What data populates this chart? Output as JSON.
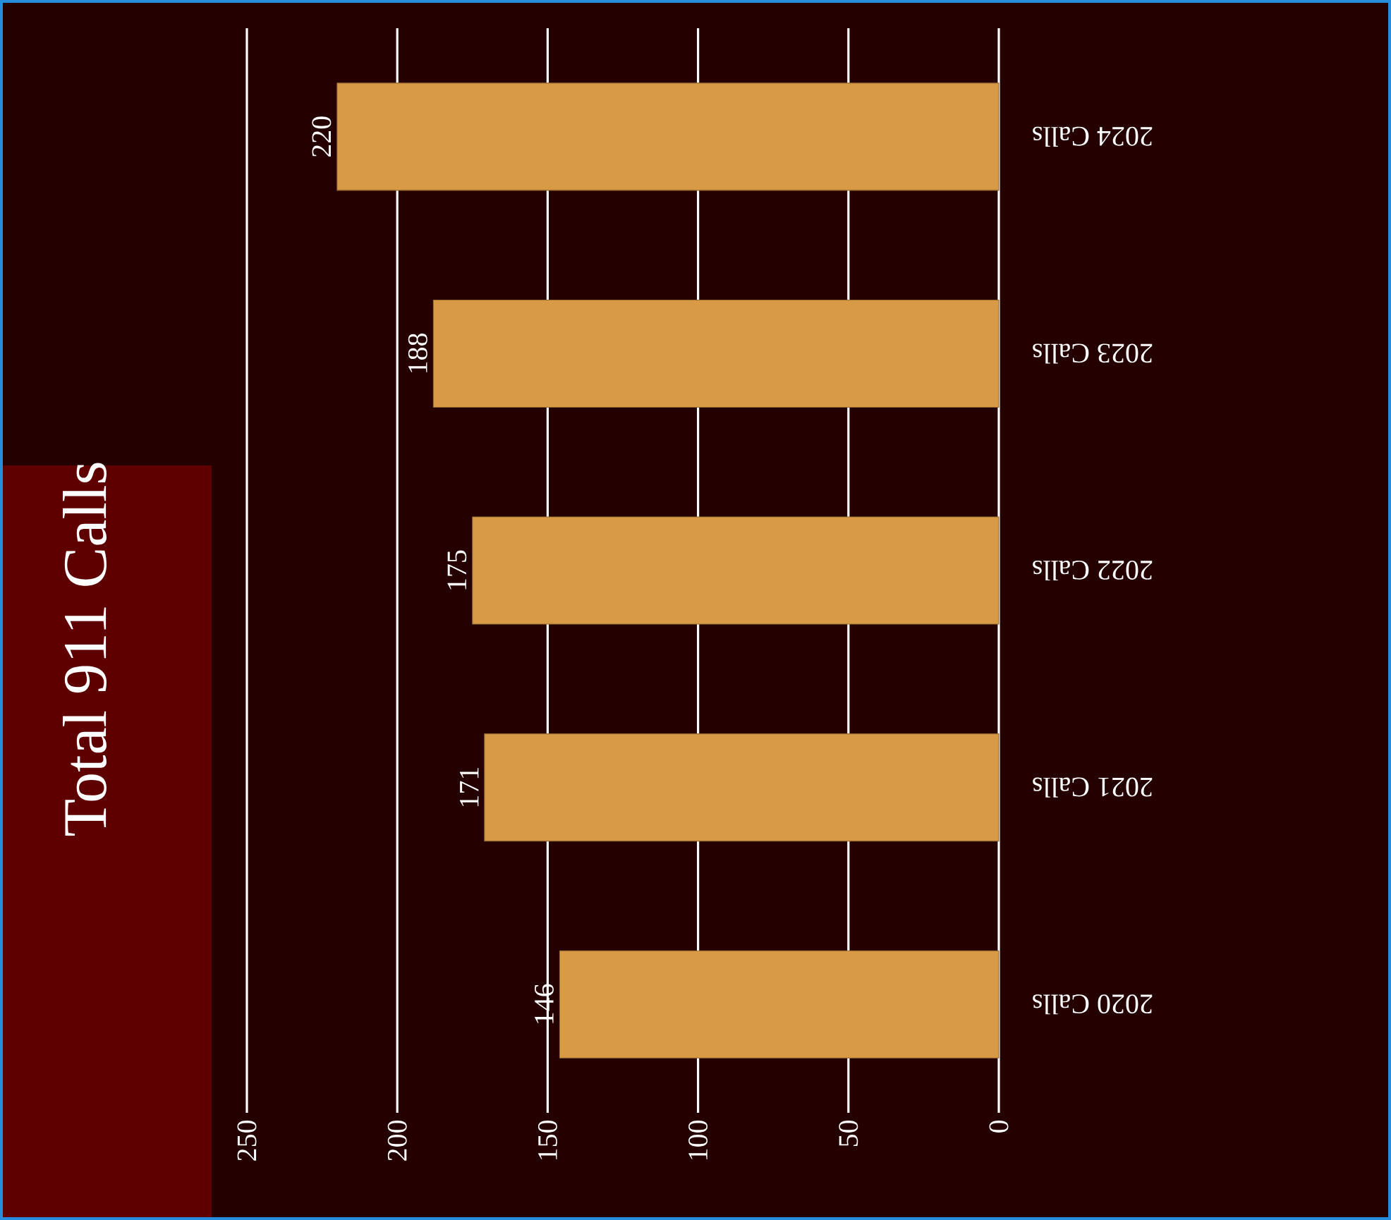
{
  "chart_data": {
    "type": "bar",
    "orientation": "horizontal",
    "title": "Total 911 Calls",
    "categories": [
      "2024 Calls",
      "2023 Calls",
      "2022 Calls",
      "2021 Calls",
      "2020 Calls"
    ],
    "values": [
      220,
      188,
      175,
      171,
      146
    ],
    "color": "#d99a45",
    "xlim": [
      250,
      0
    ],
    "xticks": [
      0,
      50,
      100,
      150,
      200,
      250
    ],
    "grid": "x",
    "data_labels": true
  }
}
